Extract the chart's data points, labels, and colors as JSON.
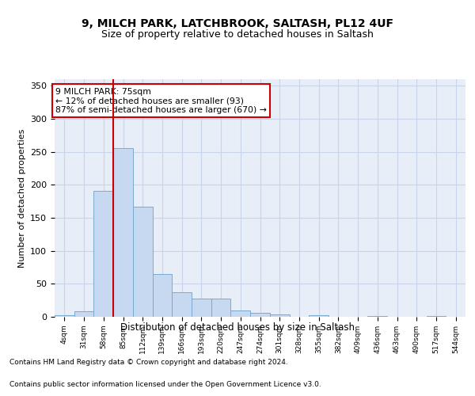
{
  "title1": "9, MILCH PARK, LATCHBROOK, SALTASH, PL12 4UF",
  "title2": "Size of property relative to detached houses in Saltash",
  "xlabel": "Distribution of detached houses by size in Saltash",
  "ylabel": "Number of detached properties",
  "bar_color": "#c6d9f0",
  "bar_edge_color": "#7aaad0",
  "grid_color": "#c8d4e8",
  "background_color": "#e8eef8",
  "bins": [
    "4sqm",
    "31sqm",
    "58sqm",
    "85sqm",
    "112sqm",
    "139sqm",
    "166sqm",
    "193sqm",
    "220sqm",
    "247sqm",
    "274sqm",
    "301sqm",
    "328sqm",
    "355sqm",
    "382sqm",
    "409sqm",
    "436sqm",
    "463sqm",
    "490sqm",
    "517sqm",
    "544sqm"
  ],
  "values": [
    2,
    9,
    191,
    256,
    167,
    65,
    37,
    28,
    28,
    10,
    6,
    4,
    0,
    3,
    0,
    0,
    1,
    0,
    0,
    1,
    0
  ],
  "vline_x": 2.5,
  "vline_color": "#cc0000",
  "annotation_text": "9 MILCH PARK: 75sqm\n← 12% of detached houses are smaller (93)\n87% of semi-detached houses are larger (670) →",
  "annotation_box_color": "white",
  "annotation_box_edge": "#cc0000",
  "footer1": "Contains HM Land Registry data © Crown copyright and database right 2024.",
  "footer2": "Contains public sector information licensed under the Open Government Licence v3.0.",
  "ylim": [
    0,
    360
  ],
  "yticks": [
    0,
    50,
    100,
    150,
    200,
    250,
    300,
    350
  ]
}
